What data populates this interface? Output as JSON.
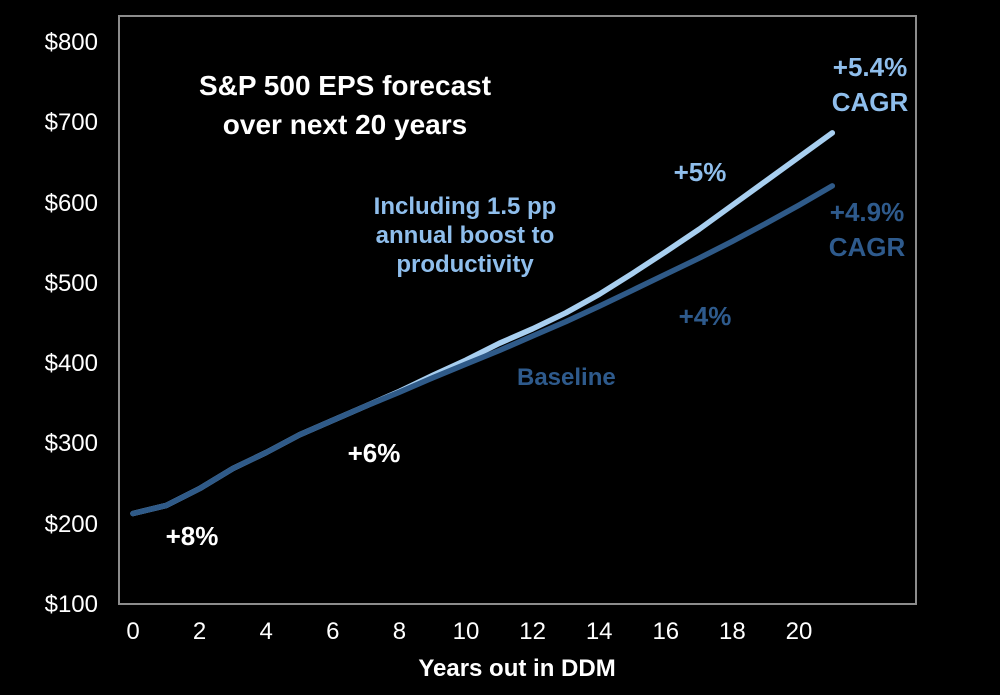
{
  "chart_data": {
    "type": "line",
    "title": "S&P 500 EPS forecast\nover next 20 years",
    "xlabel": "Years out in DDM",
    "ylim": [
      100,
      800
    ],
    "xlim": [
      0,
      21
    ],
    "grid": false,
    "legend": "none (inline annotations)",
    "x": [
      0,
      1,
      2,
      3,
      4,
      5,
      6,
      7,
      8,
      9,
      10,
      11,
      12,
      13,
      14,
      15,
      16,
      17,
      18,
      19,
      20,
      21
    ],
    "series": [
      {
        "name": "Including 1.5 pp annual boost to productivity",
        "color": "#A8CFF0",
        "cagr_label": "+5.4%\nCAGR",
        "values": [
          214,
          224,
          245,
          270,
          290,
          312,
          330,
          348,
          366,
          386,
          405,
          426,
          444,
          464,
          487,
          513,
          540,
          568,
          598,
          628,
          658,
          688
        ]
      },
      {
        "name": "Baseline",
        "color": "#2F5A88",
        "cagr_label": "+4.9%\nCAGR",
        "values": [
          214,
          224,
          245,
          270,
          290,
          312,
          330,
          348,
          365,
          383,
          400,
          417,
          435,
          453,
          472,
          492,
          512,
          532,
          553,
          575,
          598,
          622
        ]
      }
    ],
    "y_ticks": [
      {
        "label": "$800",
        "value": 800
      },
      {
        "label": "$700",
        "value": 700
      },
      {
        "label": "$600",
        "value": 600
      },
      {
        "label": "$500",
        "value": 500
      },
      {
        "label": "$400",
        "value": 400
      },
      {
        "label": "$300",
        "value": 300
      },
      {
        "label": "$200",
        "value": 200
      },
      {
        "label": "$100",
        "value": 100
      }
    ],
    "x_ticks": [
      {
        "label": "0",
        "value": 0
      },
      {
        "label": "2",
        "value": 2
      },
      {
        "label": "4",
        "value": 4
      },
      {
        "label": "6",
        "value": 6
      },
      {
        "label": "8",
        "value": 8
      },
      {
        "label": "10",
        "value": 10
      },
      {
        "label": "12",
        "value": 12
      },
      {
        "label": "14",
        "value": 14
      },
      {
        "label": "16",
        "value": 16
      },
      {
        "label": "18",
        "value": 18
      },
      {
        "label": "20",
        "value": 20
      }
    ],
    "annotations": {
      "growth_8": "+8%",
      "growth_6": "+6%",
      "growth_5": "+5%",
      "growth_4": "+4%",
      "baseline_label": "Baseline",
      "productivity_note": "Including 1.5 pp\nannual boost to\nproductivity",
      "cagr_light": "+5.4%\nCAGR",
      "cagr_dark": "+4.9%\nCAGR"
    },
    "colors": {
      "background": "#000000",
      "plot_border": "#8C8C8C",
      "light_line": "#A8CFF0",
      "dark_line": "#2F5A88",
      "light_text": "#8FBEEC",
      "dark_text": "#2E5A8C",
      "axis_text": "#FFFFFF"
    }
  }
}
